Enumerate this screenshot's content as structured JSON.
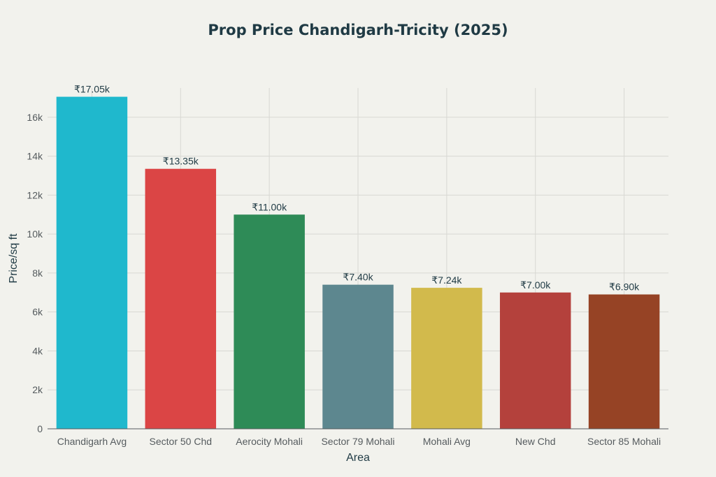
{
  "chart_data": {
    "type": "bar",
    "title": "Prop Price Chandigarh-Tricity (2025)",
    "xlabel": "Area",
    "ylabel": "Price/sq ft",
    "categories": [
      "Chandigarh Avg",
      "Sector 50 Chd",
      "Aerocity Mohali",
      "Sector 79 Mohali",
      "Mohali Avg",
      "New Chd",
      "Sector 85 Mohali"
    ],
    "values": [
      17050,
      13350,
      11000,
      7400,
      7240,
      7000,
      6900
    ],
    "data_labels": [
      "₹17.05k",
      "₹13.35k",
      "₹11.00k",
      "₹7.40k",
      "₹7.24k",
      "₹7.00k",
      "₹6.90k"
    ],
    "colors": [
      "#1fb8cd",
      "#db4545",
      "#2e8b57",
      "#5d878f",
      "#d2ba4c",
      "#b4413c",
      "#964325"
    ],
    "ylim": [
      0,
      17500
    ],
    "yticks": [
      0,
      2000,
      4000,
      6000,
      8000,
      10000,
      12000,
      14000,
      16000
    ],
    "ytick_labels": [
      "0",
      "2k",
      "4k",
      "6k",
      "8k",
      "10k",
      "12k",
      "14k",
      "16k"
    ],
    "grid": true,
    "legend": "none"
  }
}
